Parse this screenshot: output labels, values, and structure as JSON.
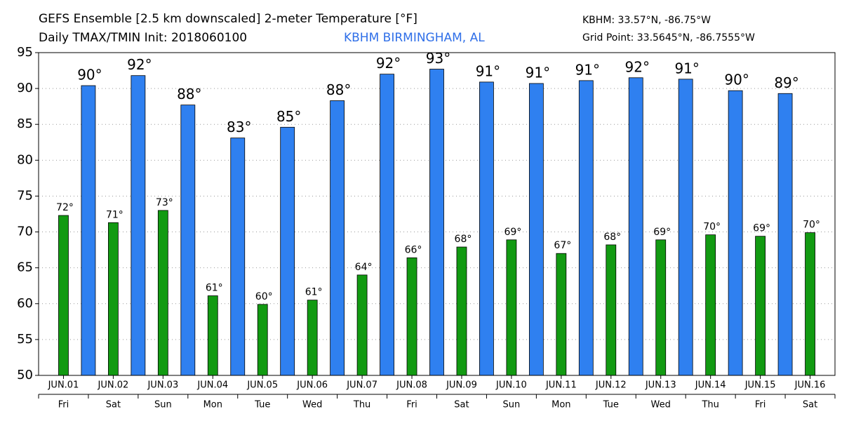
{
  "chart_data": {
    "type": "bar",
    "title": "GEFS Ensemble [2.5 km downscaled] 2-meter Temperature [°F]",
    "subtitle": "Daily TMAX/TMIN Init: 2018060100",
    "location": "KBHM BIRMINGHAM, AL",
    "station": "KBHM: 33.57°N, -86.75°W",
    "grid_point": "Grid Point: 33.5645°N, -86.7555°W",
    "categories": [
      "JUN.01",
      "JUN.02",
      "JUN.03",
      "JUN.04",
      "JUN.05",
      "JUN.06",
      "JUN.07",
      "JUN.08",
      "JUN.09",
      "JUN.10",
      "JUN.11",
      "JUN.12",
      "JUN.13",
      "JUN.14",
      "JUN.15",
      "JUN.16"
    ],
    "weekdays": [
      "Fri",
      "Sat",
      "Sun",
      "Mon",
      "Tue",
      "Wed",
      "Thu",
      "Fri",
      "Sat",
      "Sun",
      "Mon",
      "Tue",
      "Wed",
      "Thu",
      "Fri",
      "Sat"
    ],
    "series": [
      {
        "color": "#129a12",
        "values": [
          72.3,
          71.3,
          73.0,
          61.1,
          59.9,
          60.5,
          64.0,
          66.4,
          67.9,
          68.9,
          67.0,
          68.2,
          68.9,
          69.6,
          69.4,
          69.9
        ],
        "value_labels": [
          "72°",
          "71°",
          "73°",
          "61°",
          "60°",
          "61°",
          "64°",
          "66°",
          "68°",
          "69°",
          "67°",
          "68°",
          "69°",
          "70°",
          "69°",
          "70°"
        ]
      },
      {
        "color": "#2f80f0",
        "values": [
          90.4,
          91.8,
          87.7,
          83.1,
          84.6,
          88.3,
          92.0,
          92.7,
          90.9,
          90.7,
          91.1,
          91.5,
          91.3,
          89.7,
          89.3,
          null
        ],
        "value_labels": [
          "90°",
          "92°",
          "88°",
          "83°",
          "85°",
          "88°",
          "92°",
          "93°",
          "91°",
          "91°",
          "91°",
          "92°",
          "91°",
          "90°",
          "89°",
          null
        ]
      }
    ],
    "ylim": [
      50,
      95
    ],
    "yticks": [
      50,
      55,
      60,
      65,
      70,
      75,
      80,
      85,
      90,
      95
    ],
    "grid": true
  }
}
